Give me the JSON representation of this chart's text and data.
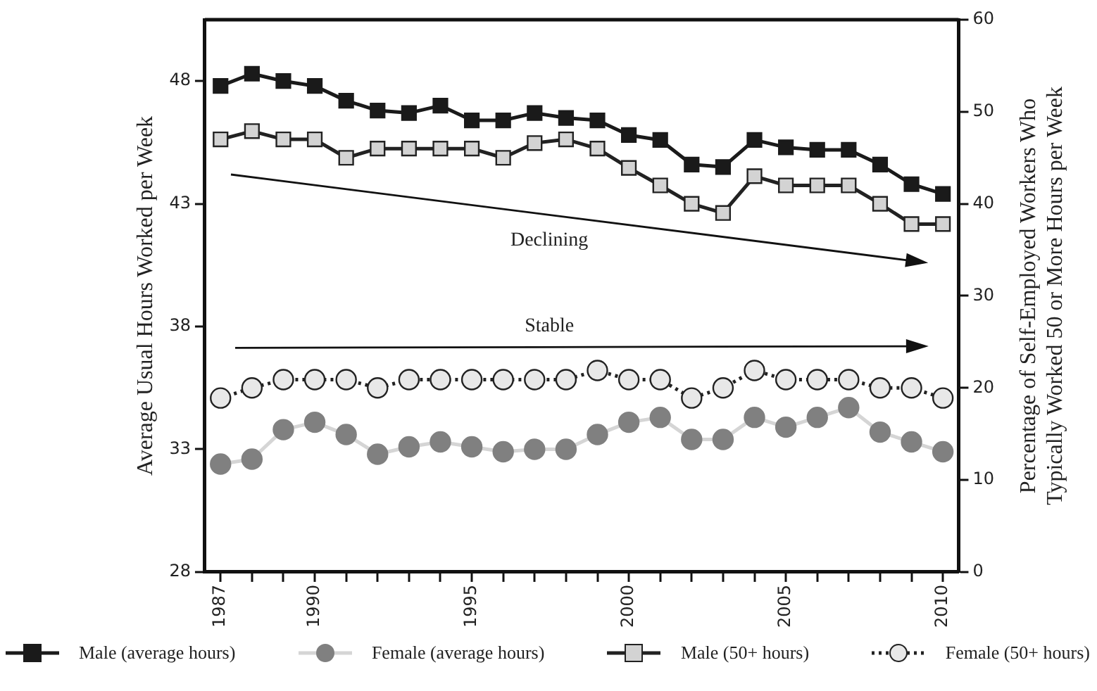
{
  "chart_data": {
    "type": "line",
    "ylabel": "Average Usual Hours Worked per Week",
    "y2label": "Percentage of Self-Employed Workers Who\nTypically Worked 50 or More Hours per Week",
    "x": [
      1987,
      1988,
      1989,
      1990,
      1991,
      1992,
      1993,
      1994,
      1995,
      1996,
      1997,
      1998,
      1999,
      2000,
      2001,
      2002,
      2003,
      2004,
      2005,
      2006,
      2007,
      2008,
      2009,
      2010
    ],
    "xlim": [
      1986.5,
      2010.5
    ],
    "xticks": [
      1987,
      {
        "value": 1988,
        "label": null
      },
      {
        "value": 1989,
        "label": null
      },
      1990,
      {
        "value": 1991,
        "label": null
      },
      {
        "value": 1992,
        "label": null
      },
      {
        "value": 1993,
        "label": null
      },
      {
        "value": 1994,
        "label": null
      },
      1995,
      {
        "value": 1996,
        "label": null
      },
      {
        "value": 1997,
        "label": null
      },
      {
        "value": 1998,
        "label": null
      },
      {
        "value": 1999,
        "label": null
      },
      2000,
      {
        "value": 2001,
        "label": null
      },
      {
        "value": 2002,
        "label": null
      },
      {
        "value": 2003,
        "label": null
      },
      {
        "value": 2004,
        "label": null
      },
      2005,
      {
        "value": 2006,
        "label": null
      },
      {
        "value": 2007,
        "label": null
      },
      {
        "value": 2008,
        "label": null
      },
      {
        "value": 2009,
        "label": null
      },
      2010
    ],
    "ylim": [
      28,
      50.5
    ],
    "yticks": [
      28,
      33,
      38,
      43,
      48
    ],
    "y2lim": [
      0,
      60
    ],
    "y2ticks": [
      0,
      10,
      20,
      30,
      40,
      50,
      60
    ],
    "series": [
      {
        "name": "Male (average hours)",
        "color": "#1a1a1a",
        "marker": "square",
        "line_style": "solid",
        "values": [
          47.8,
          48.3,
          48.0,
          47.8,
          47.2,
          46.8,
          46.7,
          47.0,
          46.4,
          46.4,
          46.7,
          46.5,
          46.4,
          45.8,
          45.6,
          44.6,
          44.5,
          45.6,
          45.3,
          45.2,
          45.2,
          44.6,
          43.8,
          43.4
        ]
      },
      {
        "name": "Female (average hours)",
        "color": "#808080",
        "marker": "circle",
        "line_style": "solid",
        "values": [
          32.4,
          32.6,
          33.8,
          34.1,
          33.6,
          32.8,
          33.1,
          33.3,
          33.1,
          32.9,
          33.0,
          33.0,
          33.6,
          34.1,
          34.3,
          33.4,
          33.4,
          34.3,
          33.9,
          34.3,
          34.7,
          33.7,
          33.3,
          32.9
        ]
      },
      {
        "name": "Male (50+ hours)",
        "color": "#d3d3d3",
        "marker": "square",
        "line_style": "solid",
        "axis": "y2",
        "values": [
          47.0,
          47.9,
          47.0,
          47.0,
          45.0,
          46.0,
          46.0,
          46.0,
          46.0,
          45.0,
          46.6,
          47.0,
          46.0,
          43.9,
          42.0,
          40.0,
          39.0,
          43.0,
          42.0,
          42.0,
          42.0,
          40.0,
          37.8,
          37.8
        ]
      },
      {
        "name": "Female (50+ hours)",
        "color": "#e8e8e8",
        "marker": "circle",
        "line_style": "dotted",
        "axis": "y2",
        "values": [
          18.9,
          20.0,
          20.9,
          20.9,
          20.9,
          20.0,
          20.9,
          20.9,
          20.9,
          20.9,
          20.9,
          20.9,
          21.9,
          20.9,
          20.9,
          18.9,
          20.0,
          21.9,
          20.9,
          20.9,
          20.9,
          20.0,
          20.0,
          18.9
        ]
      }
    ],
    "annotations": [
      "Declining",
      "Stable"
    ],
    "legend": "bottom",
    "grid": false
  }
}
